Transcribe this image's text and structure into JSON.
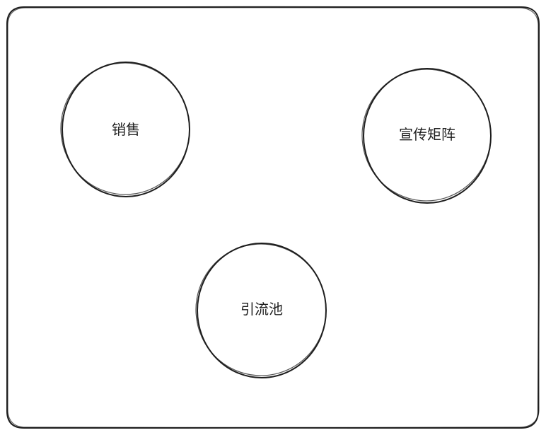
{
  "diagram": {
    "stroke_color": "#1e1e1e",
    "background_color": "#ffffff",
    "nodes": [
      {
        "id": "sales",
        "label": "销售"
      },
      {
        "id": "promo-matrix",
        "label": "宣传矩阵"
      },
      {
        "id": "traffic-pool",
        "label": "引流池"
      }
    ]
  }
}
